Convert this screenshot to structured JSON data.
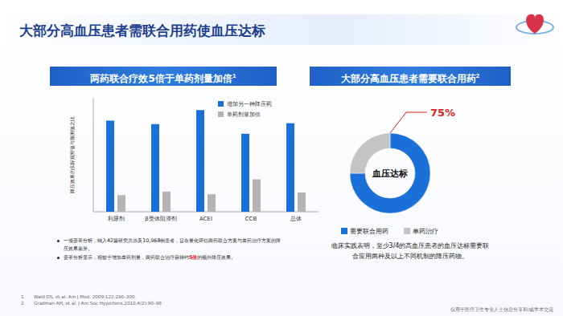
{
  "page": {
    "title": "大部分高血压患者需联合用药使血压达标",
    "bullets": [
      {
        "parts": [
          {
            "text": "一项荟萃分析，纳入42篇研究共涉及10,968例患者，旨在量化评估两药联合方案与单药治疗方案的降压效果差异。"
          }
        ]
      },
      {
        "parts": [
          {
            "text": "荟萃分析显示，相较于增加单药剂量，两药联合治疗获得约"
          },
          {
            "text": "5倍",
            "color": "#e02020"
          },
          {
            "text": "的额外降压效果。"
          }
        ]
      }
    ],
    "references": [
      {
        "number": "1.",
        "text": "Wald DS, et al. Am J Med. 2009;122:290–300."
      },
      {
        "number": "2.",
        "text": "Gradman AH, et al. J Am Soc Hypertens,2010,4(2):90–98"
      }
    ],
    "footer": "仅用于医疗卫生专业人士信息分享和/或学术交流"
  },
  "chart_data": [
    {
      "type": "bar",
      "title": "两药联合疗效5倍于单药剂量加倍",
      "title_ref": "1",
      "y_label": "降压效果的实际观察值与预测值之比",
      "categories": [
        "利尿剂",
        "β受体阻滞剂",
        "ACEI",
        "CCB",
        "总体"
      ],
      "series": [
        {
          "name": "增加另一种降压药",
          "color": "#1a6fd8",
          "values": [
            1.04,
            1.0,
            1.16,
            0.89,
            1.01
          ]
        },
        {
          "name": "单药剂量加倍",
          "color": "#b4b4b4",
          "values": [
            0.19,
            0.23,
            0.2,
            0.37,
            0.22
          ]
        }
      ],
      "ylim": [
        0,
        1.3
      ],
      "tick_labels": "x",
      "legend": "upper right",
      "grid": false
    },
    {
      "type": "donut",
      "title": "大部分高血压患者需要联合用药",
      "title_ref": "2",
      "categories": [
        "需要联合用药",
        "单药治疗"
      ],
      "values": [
        75,
        25
      ],
      "colors": [
        "#1a6fd8",
        "#c4c4c4"
      ],
      "data_labels": true,
      "value_labels": [
        "75%",
        null
      ],
      "center_label": "血压达标",
      "legend": "bottom",
      "caption": "临床实践表明，至少3/4的高血压患者的血压达标需要联合应用两种及以上不同机制的降压药物。"
    }
  ]
}
